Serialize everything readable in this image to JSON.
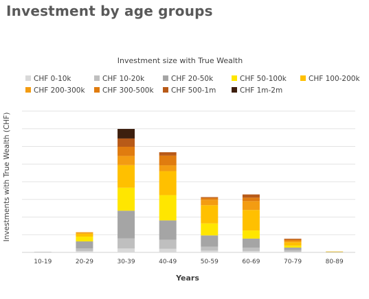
{
  "page": {
    "title": "Investment by age groups"
  },
  "chart_data": {
    "type": "bar",
    "stacked": true,
    "title": "Investment size with True Wealth",
    "xlabel": "Years",
    "ylabel": "Investments with True Wealth (CHF)",
    "y_tick_labels_shown": false,
    "grid": true,
    "legend_position": "top",
    "categories": [
      "10-19",
      "20-29",
      "30-39",
      "40-49",
      "50-59",
      "60-69",
      "70-79",
      "80-89"
    ],
    "ylim": [
      0,
      8
    ],
    "series": [
      {
        "name": "CHF 0-10k",
        "color": "#d9d9d9",
        "values": [
          0.01,
          0.08,
          0.22,
          0.2,
          0.1,
          0.08,
          0.04,
          0.0
        ]
      },
      {
        "name": "CHF 10-20k",
        "color": "#bfbfbf",
        "values": [
          0.01,
          0.14,
          0.57,
          0.52,
          0.23,
          0.19,
          0.09,
          0.0
        ]
      },
      {
        "name": "CHF 20-50k",
        "color": "#a5a5a5",
        "values": [
          0.01,
          0.4,
          1.57,
          1.09,
          0.63,
          0.51,
          0.14,
          0.02
        ]
      },
      {
        "name": "CHF 50-100k",
        "color": "#ffe600",
        "values": [
          0.0,
          0.27,
          1.3,
          1.43,
          0.68,
          0.46,
          0.11,
          0.01
        ]
      },
      {
        "name": "CHF 100-200k",
        "color": "#ffc000",
        "values": [
          0.0,
          0.17,
          1.28,
          1.36,
          1.03,
          1.16,
          0.19,
          0.02
        ]
      },
      {
        "name": "CHF 200-300k",
        "color": "#f39c12",
        "values": [
          0.0,
          0.08,
          0.52,
          0.33,
          0.31,
          0.5,
          0.09,
          0.0
        ]
      },
      {
        "name": "CHF 300-500k",
        "color": "#e07c0f",
        "values": [
          0.0,
          0.0,
          0.52,
          0.55,
          0.1,
          0.2,
          0.06,
          0.0
        ]
      },
      {
        "name": "CHF 500-1m",
        "color": "#b85a18",
        "values": [
          0.0,
          0.0,
          0.47,
          0.19,
          0.05,
          0.18,
          0.05,
          0.0
        ]
      },
      {
        "name": "CHF 1m-2m",
        "color": "#3d1f0e",
        "values": [
          0.0,
          0.0,
          0.54,
          0.0,
          0.0,
          0.0,
          0.0,
          0.0
        ]
      }
    ]
  }
}
